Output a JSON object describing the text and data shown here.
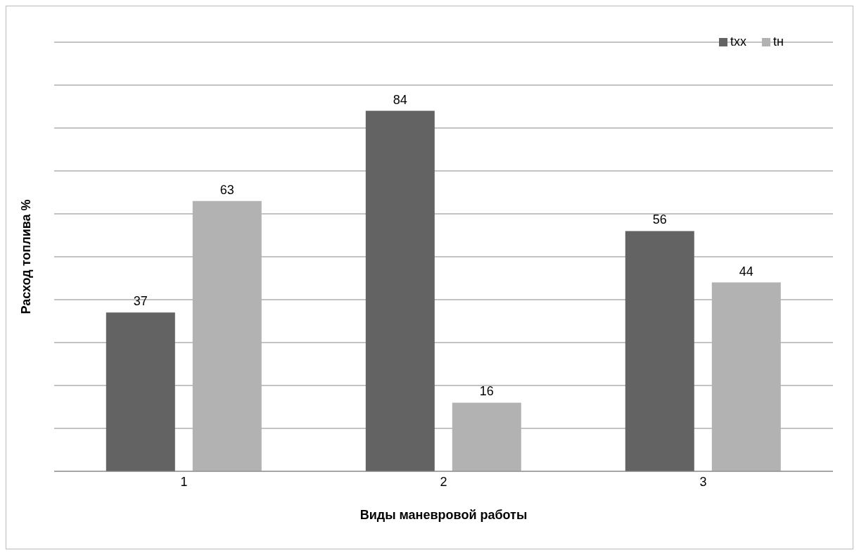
{
  "chart_data": {
    "type": "bar",
    "xlabel": "Виды маневровой работы",
    "ylabel": "Расход топлива %",
    "categories": [
      "1",
      "2",
      "3"
    ],
    "series": [
      {
        "name": "tхх",
        "color": "#636363",
        "values": [
          37,
          84,
          56
        ]
      },
      {
        "name": "tн",
        "color": "#b2b2b2",
        "values": [
          63,
          16,
          44
        ]
      }
    ],
    "ylim": [
      0,
      100
    ],
    "grid": "y",
    "tick_labels": "x",
    "data_labels": true,
    "legend": "top right"
  }
}
